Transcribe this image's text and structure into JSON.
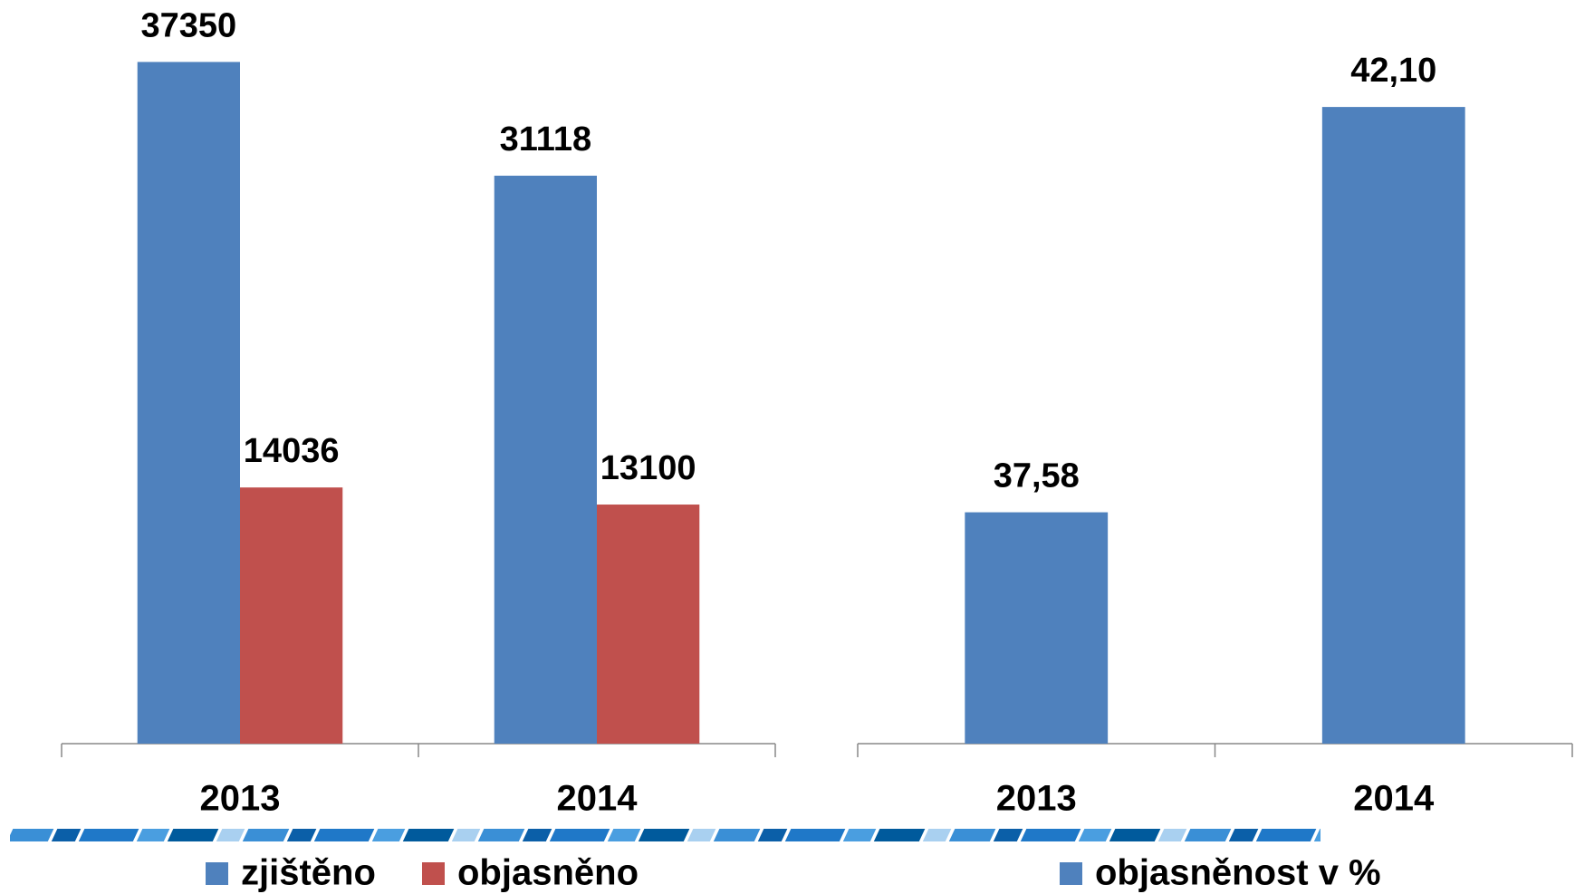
{
  "chart_data": [
    {
      "type": "bar",
      "categories": [
        "2013",
        "2014"
      ],
      "series": [
        {
          "name": "zjištěno",
          "color": "#4f81bd",
          "values": [
            37350,
            31118
          ]
        },
        {
          "name": "objasněno",
          "color": "#c0504d",
          "values": [
            14036,
            13100
          ]
        }
      ],
      "ylim": [
        0,
        40000
      ]
    },
    {
      "type": "bar",
      "categories": [
        "2013",
        "2014"
      ],
      "series": [
        {
          "name": "objasněnost v %",
          "color": "#4f81bd",
          "values": [
            37.58,
            42.1
          ],
          "value_labels": [
            "37,58",
            "42,10"
          ]
        }
      ],
      "ylim": [
        35,
        43
      ]
    }
  ]
}
